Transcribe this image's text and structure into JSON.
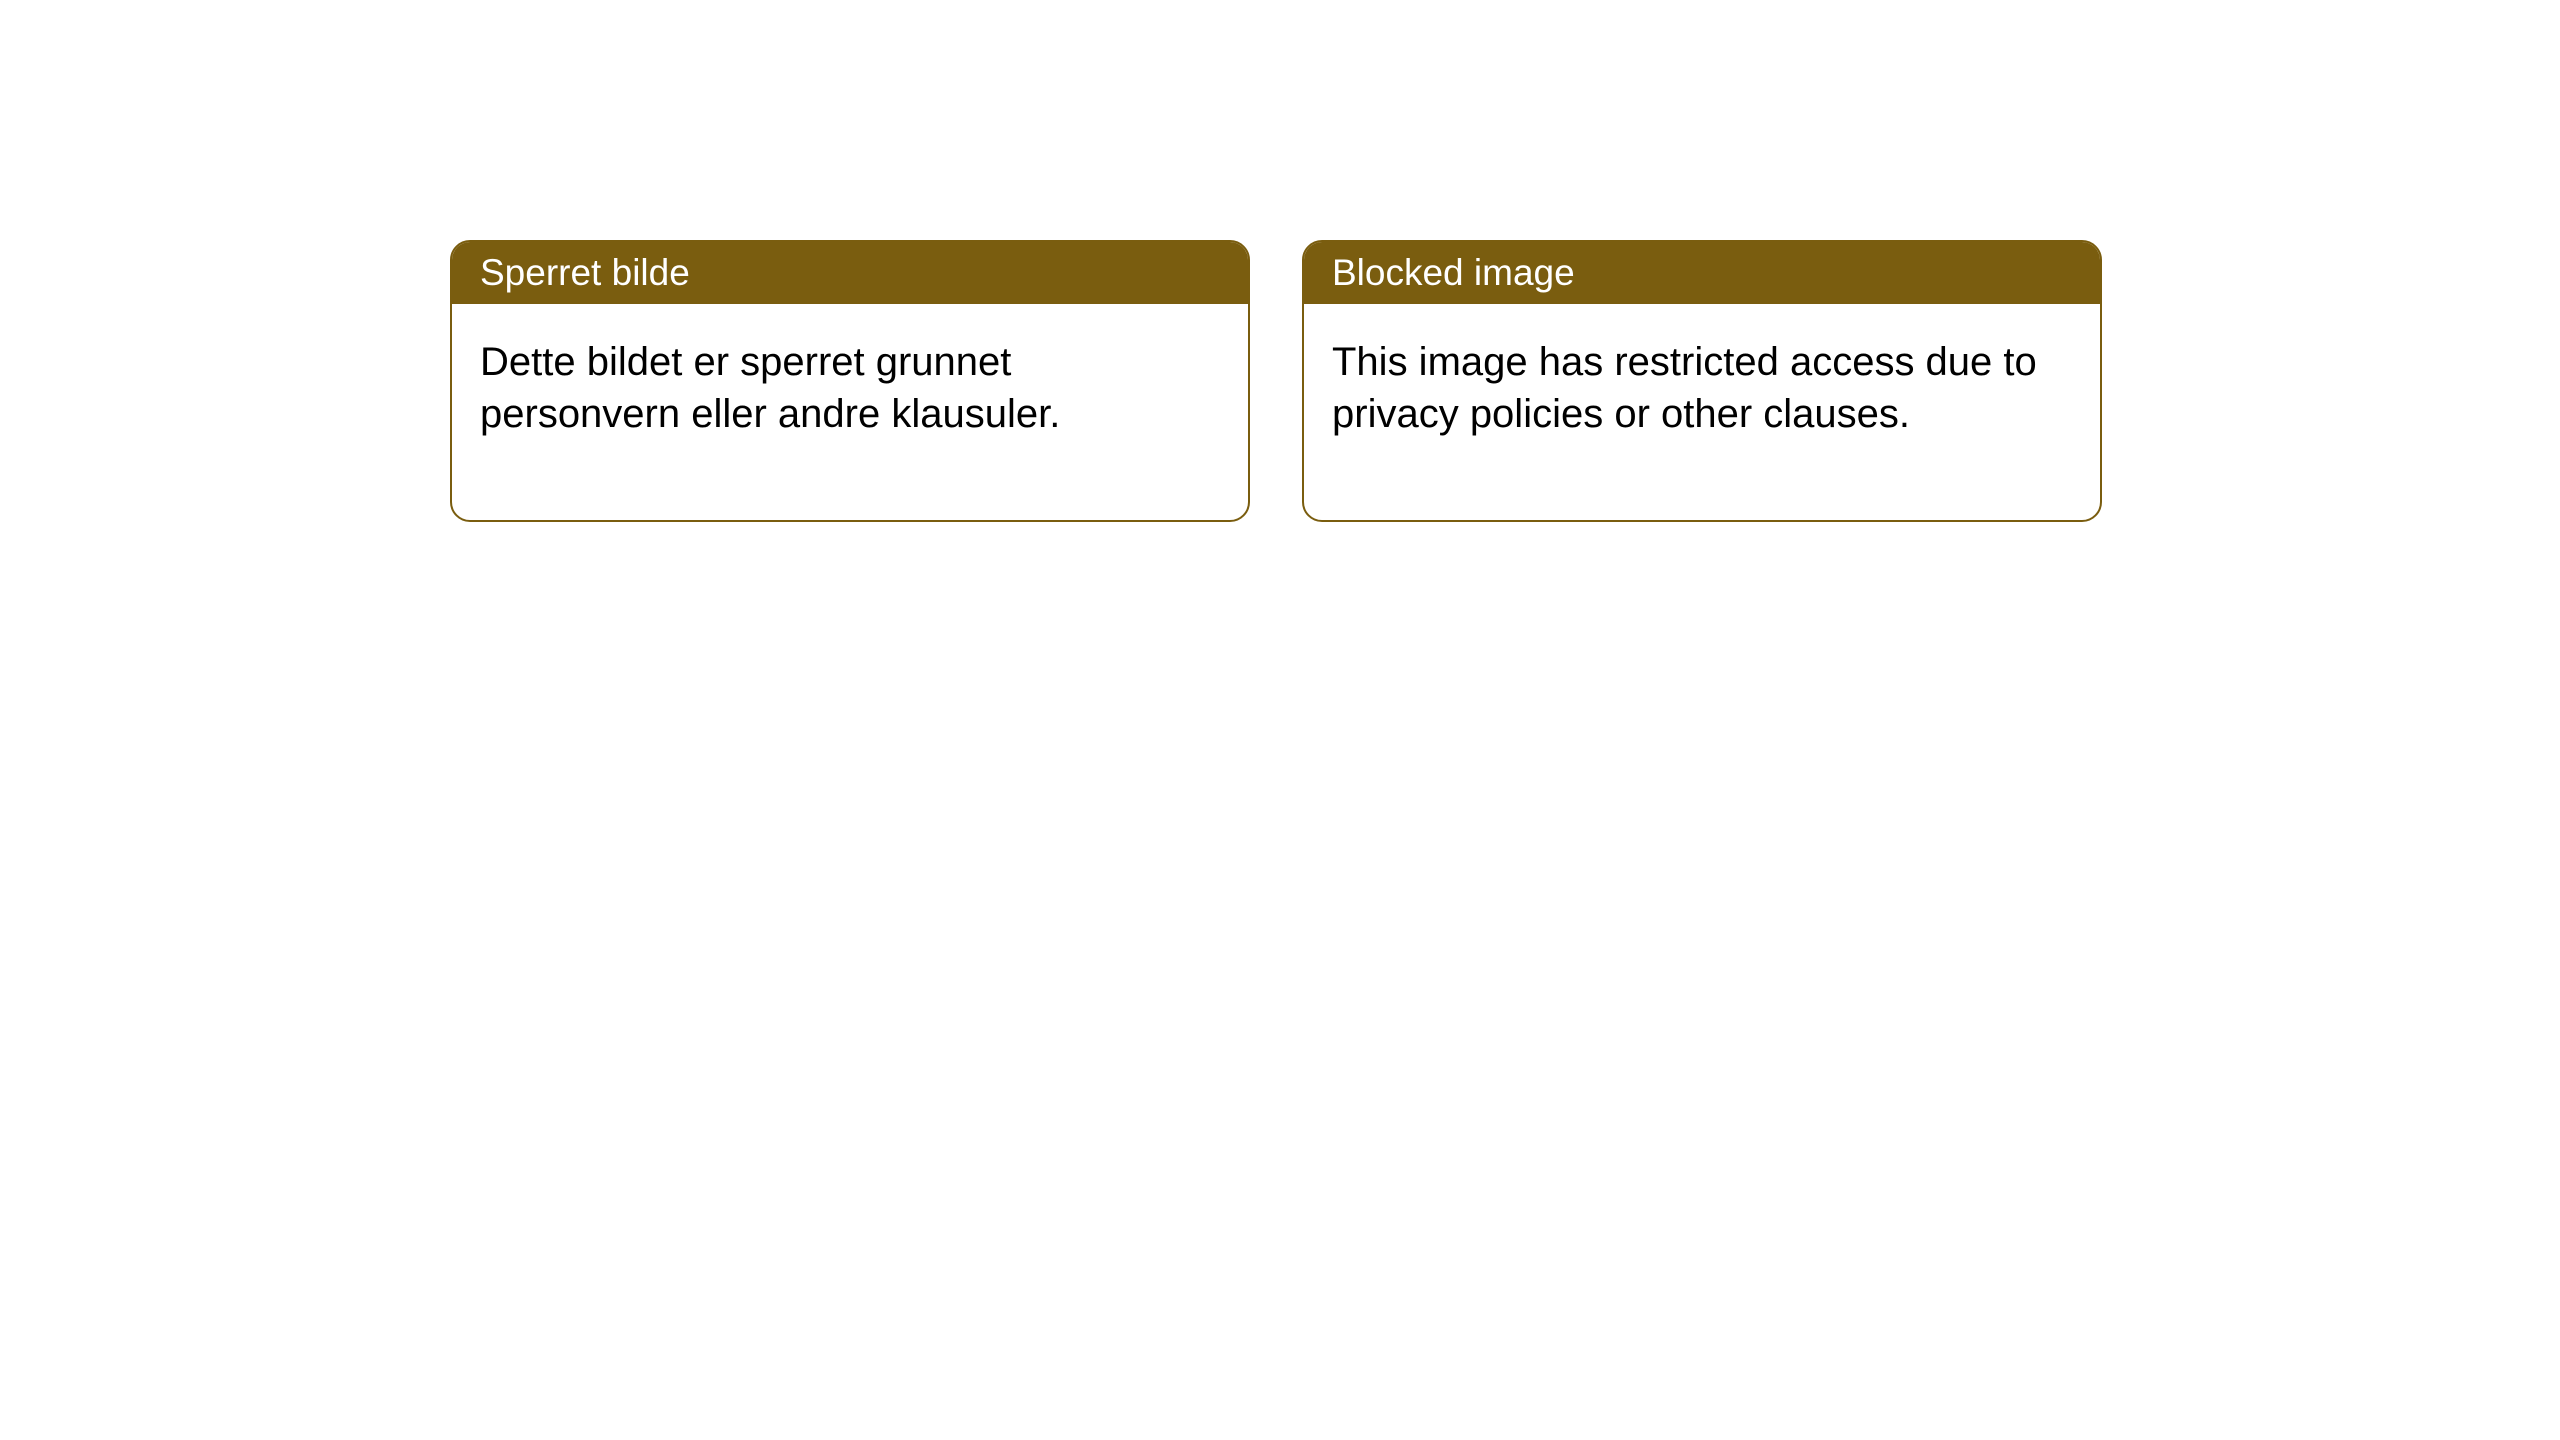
{
  "notices": [
    {
      "title": "Sperret bilde",
      "body": "Dette bildet er sperret grunnet personvern eller andre klausuler."
    },
    {
      "title": "Blocked image",
      "body": "This image has restricted access due to privacy policies or other clauses."
    }
  ],
  "styling": {
    "card_border_color": "#7a5d0f",
    "header_background_color": "#7a5d0f",
    "header_text_color": "#ffffff",
    "body_text_color": "#000000",
    "page_background_color": "#ffffff",
    "card_border_radius": 20,
    "title_fontsize": 37,
    "body_fontsize": 40
  }
}
